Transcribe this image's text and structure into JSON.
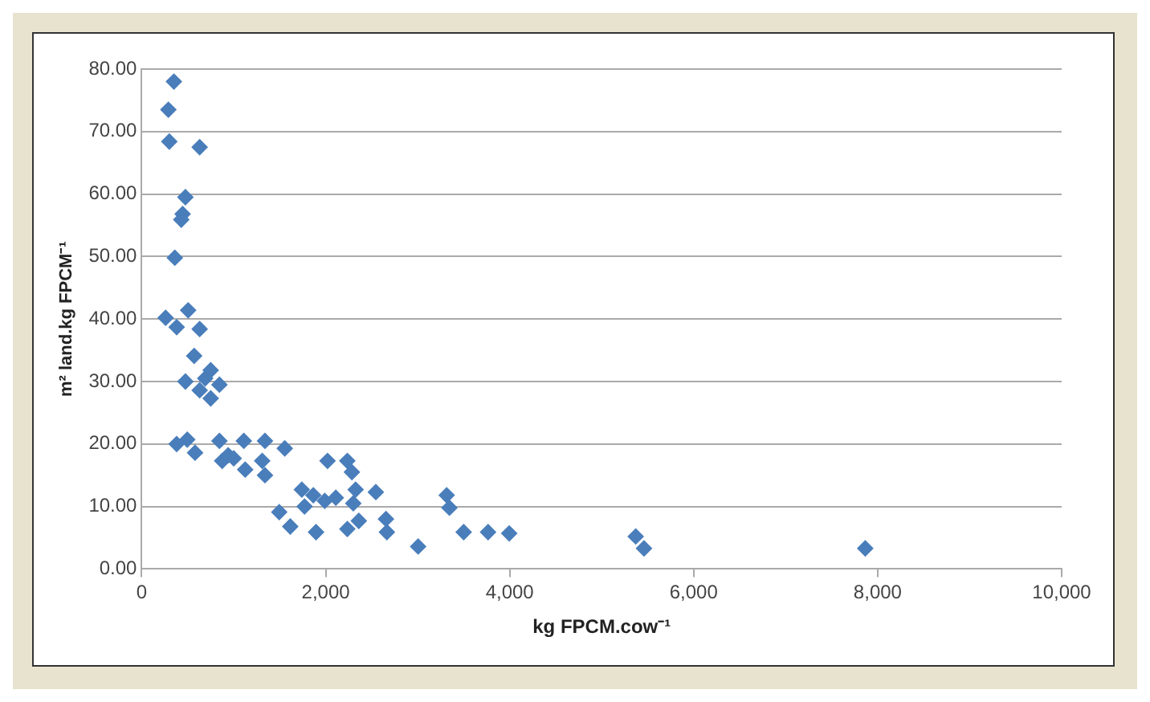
{
  "chart_data": {
    "type": "scatter",
    "xlabel": "kg FPCM.cow⁻¹",
    "ylabel": "m² land.kg FPCM⁻¹",
    "x": [
      350,
      290,
      300,
      630,
      475,
      445,
      430,
      360,
      260,
      350,
      380,
      505,
      630,
      570,
      475,
      630,
      750,
      845,
      750,
      690,
      380,
      495,
      580,
      845,
      875,
      940,
      1000,
      1110,
      1125,
      1340,
      1340,
      1310,
      1555,
      1495,
      1615,
      1740,
      1770,
      1895,
      1865,
      2020,
      1990,
      2110,
      2235,
      2285,
      2325,
      2300,
      2235,
      2360,
      2545,
      2655,
      2665,
      3005,
      3315,
      3345,
      3500,
      3765,
      3995,
      5370,
      5460,
      7865
    ],
    "series": [
      {
        "color": "#4a7ebb",
        "values": [
          78,
          73.5,
          68.4,
          67.5,
          59.5,
          56.8,
          55.9,
          49.8,
          40.2,
          null,
          38.7,
          41.4,
          38.4,
          34.1,
          30,
          28.6,
          31.8,
          29.5,
          27.3,
          30.5,
          20,
          20.7,
          18.6,
          20.5,
          17.3,
          18.2,
          17.7,
          20.5,
          15.9,
          20.5,
          15,
          17.3,
          19.3,
          9.1,
          6.8,
          12.7,
          10,
          5.9,
          11.8,
          17.3,
          10.9,
          11.4,
          17.3,
          15.5,
          12.7,
          10.5,
          6.4,
          7.7,
          12.3,
          8,
          5.9,
          3.6,
          11.8,
          9.8,
          5.9,
          5.9,
          5.7,
          5.2,
          3.3,
          3.3
        ]
      }
    ],
    "xlim": [
      0,
      10000
    ],
    "xticks": [
      0,
      {
        "value": 2000,
        "label": "2,000"
      },
      {
        "value": 4000,
        "label": "4,000"
      },
      {
        "value": 6000,
        "label": "6,000"
      },
      {
        "value": 8000,
        "label": "8,000"
      },
      {
        "value": 10000,
        "label": "10,000"
      }
    ],
    "ylim": [
      0,
      80
    ],
    "yticks": [
      {
        "value": 0,
        "label": "0.00"
      },
      {
        "value": 10,
        "label": "10.00"
      },
      {
        "value": 20,
        "label": "20.00"
      },
      {
        "value": 30,
        "label": "30.00"
      },
      {
        "value": 40,
        "label": "40.00"
      },
      {
        "value": 50,
        "label": "50.00"
      },
      {
        "value": 60,
        "label": "60.00"
      },
      {
        "value": 70,
        "label": "70.00"
      },
      {
        "value": 80,
        "label": "80.00"
      }
    ],
    "grid": "y",
    "marker": "diamond",
    "legend": false
  }
}
